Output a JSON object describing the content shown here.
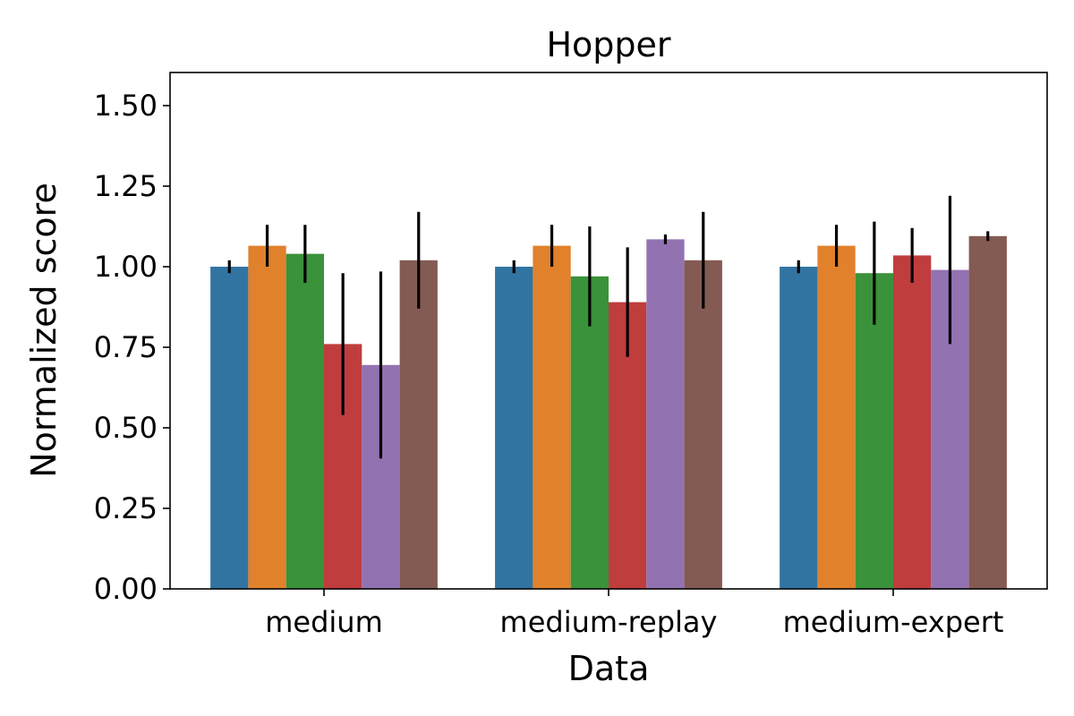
{
  "chart_data": {
    "type": "bar",
    "title": "Hopper",
    "xlabel": "Data",
    "ylabel": "Normalized score",
    "ylim": [
      0,
      1.6
    ],
    "yticks": [
      "0.00",
      "0.25",
      "0.50",
      "0.75",
      "1.00",
      "1.25",
      "1.50"
    ],
    "categories": [
      "medium",
      "medium-replay",
      "medium-expert"
    ],
    "grid": false,
    "legend": "none",
    "series": [
      {
        "color": "#3274a1",
        "values": [
          1.0,
          1.0,
          1.0
        ],
        "errors": [
          0.02,
          0.02,
          0.02
        ]
      },
      {
        "color": "#e1812c",
        "values": [
          1.065,
          1.065,
          1.065
        ],
        "errors": [
          0.065,
          0.065,
          0.065
        ]
      },
      {
        "color": "#3a923a",
        "values": [
          1.04,
          0.97,
          0.98
        ],
        "errors": [
          0.09,
          0.155,
          0.16
        ]
      },
      {
        "color": "#c03d3e",
        "values": [
          0.76,
          0.89,
          1.035
        ],
        "errors": [
          0.22,
          0.17,
          0.085
        ]
      },
      {
        "color": "#9372b2",
        "values": [
          0.695,
          1.085,
          0.99
        ],
        "errors": [
          0.29,
          0.015,
          0.23
        ]
      },
      {
        "color": "#845b53",
        "values": [
          1.02,
          1.02,
          1.095
        ],
        "errors": [
          0.15,
          0.15,
          0.015
        ]
      }
    ]
  }
}
